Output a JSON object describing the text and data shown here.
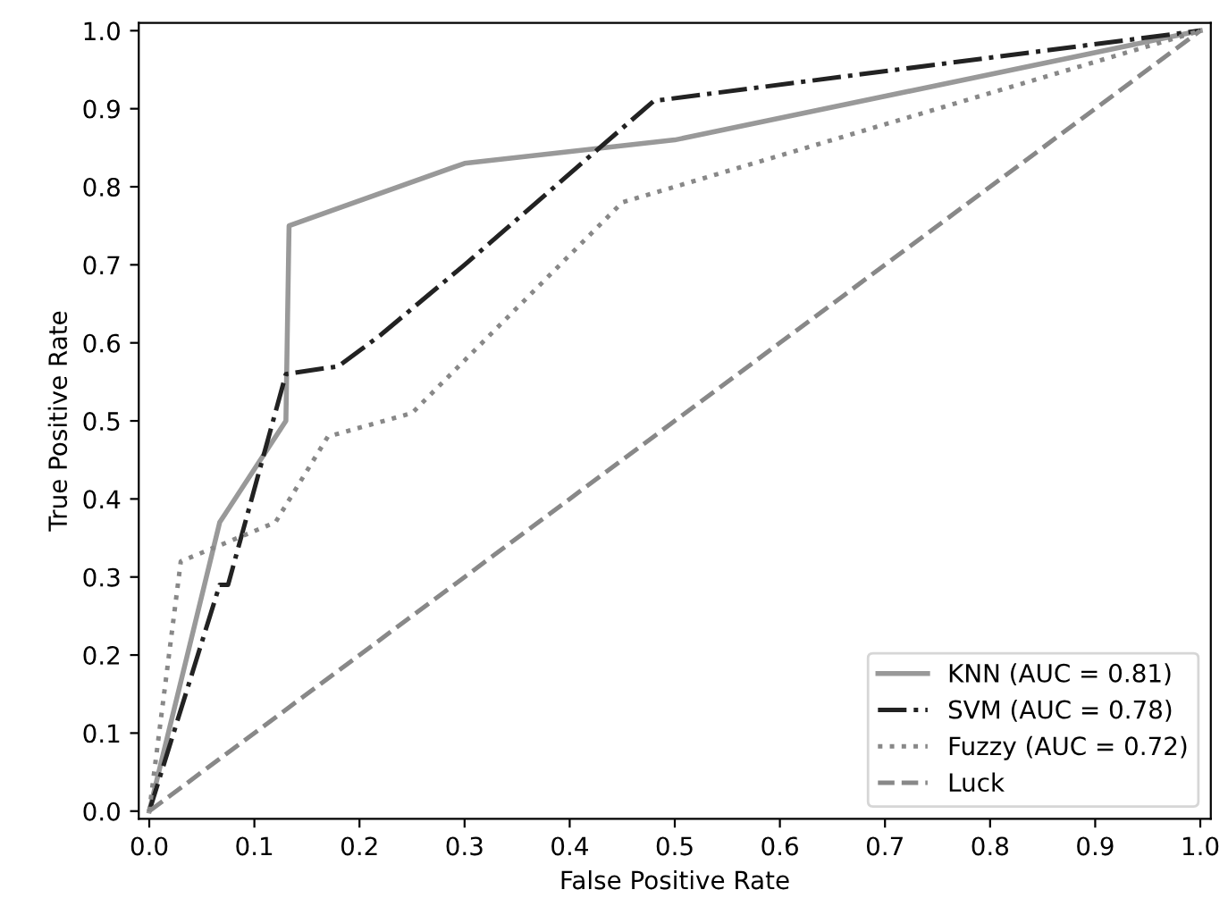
{
  "chart_data": {
    "type": "line",
    "xlabel": "False Positive Rate",
    "ylabel": "True Positive Rate",
    "xlim": [
      -0.01,
      1.01
    ],
    "ylim": [
      -0.01,
      1.01
    ],
    "xticks": [
      {
        "value": 0,
        "label": "0.0"
      },
      0.1,
      0.2,
      0.3,
      0.4,
      0.5,
      0.6,
      0.7,
      0.8,
      0.9,
      {
        "value": 1,
        "label": "1.0"
      }
    ],
    "yticks": [
      {
        "value": 0,
        "label": "0.0"
      },
      0.1,
      0.2,
      0.3,
      0.4,
      0.5,
      0.6,
      0.7,
      0.8,
      0.9,
      {
        "value": 1,
        "label": "1.0"
      }
    ],
    "grid": false,
    "legend": "bottom right",
    "marker": "none",
    "series": [
      {
        "name": "KNN (AUC = 0.81)",
        "color": "#999999",
        "line_style": "solid",
        "x": [
          0,
          0.067,
          0.13,
          0.133,
          0.3,
          0.5,
          1.0
        ],
        "values": [
          0,
          0.37,
          0.5,
          0.75,
          0.83,
          0.86,
          1.0
        ]
      },
      {
        "name": "SVM (AUC = 0.78)",
        "color": "#222222",
        "line_style": "dashdot",
        "x": [
          0,
          0.067,
          0.075,
          0.13,
          0.18,
          0.22,
          0.3,
          0.48,
          1.0
        ],
        "values": [
          0,
          0.29,
          0.29,
          0.56,
          0.57,
          0.61,
          0.7,
          0.91,
          1.0
        ]
      },
      {
        "name": "Fuzzy (AUC = 0.72)",
        "color": "#888888",
        "line_style": "dotted",
        "x": [
          0,
          0.03,
          0.12,
          0.17,
          0.25,
          0.45,
          0.5,
          1.0
        ],
        "values": [
          0,
          0.32,
          0.37,
          0.48,
          0.51,
          0.78,
          0.8,
          1.0
        ]
      },
      {
        "name": "Luck",
        "color": "#888888",
        "line_style": "dashed",
        "x": [
          0,
          1.0
        ],
        "values": [
          0,
          1.0
        ]
      }
    ]
  }
}
